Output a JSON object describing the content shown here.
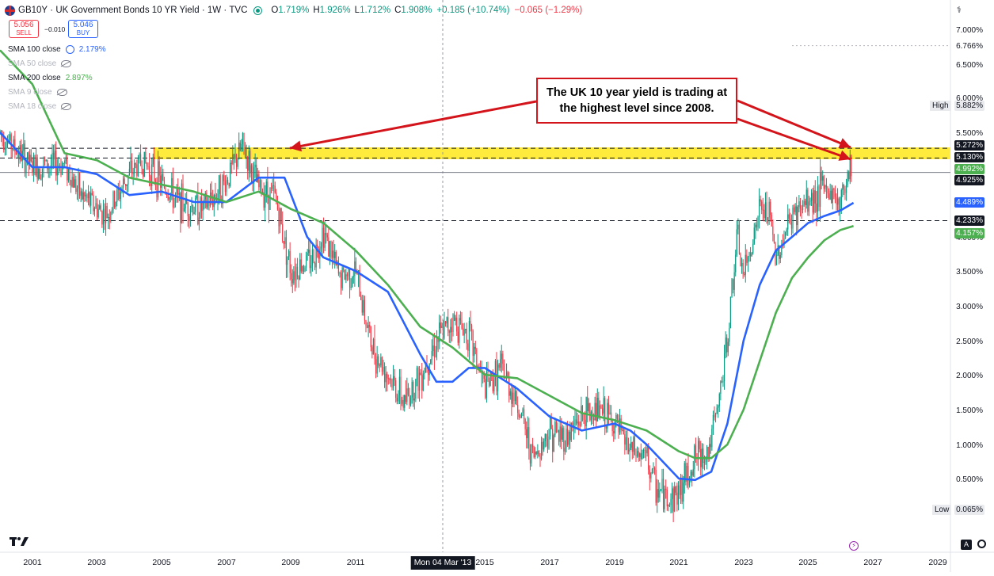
{
  "header": {
    "symbol": "GB10Y",
    "title": "UK Government Bonds 10 YR Yield",
    "interval": "1W",
    "source": "TVC",
    "open_key": "O",
    "open": "1.719%",
    "high_key": "H",
    "high": "1.926%",
    "low_key": "L",
    "low": "1.712%",
    "close_key": "C",
    "close": "1.908%",
    "change": "+0.185 (+10.74%)",
    "neg_change": "−0.065 (−1.29%)"
  },
  "trade": {
    "sell_price": "5.056",
    "sell_label": "SELL",
    "spread": "−0.010",
    "buy_price": "5.046",
    "buy_label": "BUY"
  },
  "indicators": [
    {
      "label": "SMA 100 close",
      "value": "2.179%",
      "hidden": false,
      "color": "#2962ff"
    },
    {
      "label": "SMA 50 close",
      "value": "",
      "hidden": true
    },
    {
      "label": "SMA 200 close",
      "value": "2.897%",
      "hidden": false,
      "color": "#4caf50"
    },
    {
      "label": "SMA 9 close",
      "value": "",
      "hidden": true
    },
    {
      "label": "SMA 18 close",
      "value": "",
      "hidden": true
    }
  ],
  "annotation": {
    "text": "The UK 10 year yield is trading at the highest level since 2008."
  },
  "price_labels": {
    "p6766": "6.766%",
    "high_tag": "High",
    "high_val": "5.882%",
    "p5272": "5.272%",
    "p5130": "5.130%",
    "p4992": "4.992%",
    "p4925": "4.925%",
    "p4489": "4.489%",
    "p4233": "4.233%",
    "p4157": "4.157%",
    "low_tag": "Low",
    "low_val": "0.065%"
  },
  "crosshair": {
    "x_label": "Mon 04 Mar '13"
  },
  "controls": {
    "auto": "A"
  },
  "colors": {
    "up": "#089981",
    "down": "#f23645",
    "sma100": "#2962ff",
    "sma200": "#4caf50",
    "zone": "#ffeb3b",
    "arrow": "#d4141b"
  },
  "chart_data": {
    "type": "candlestick",
    "symbol": "GB10Y",
    "interval": "1W",
    "y_scale": "linear (percent)",
    "ylim": [
      0,
      7.2
    ],
    "x_range": [
      2000.0,
      2029.4
    ],
    "y_ticks": [
      "7.000%",
      "6.500%",
      "6.000%",
      "5.500%",
      "5.000%",
      "4.500%",
      "4.000%",
      "3.500%",
      "3.000%",
      "2.500%",
      "2.000%",
      "1.500%",
      "1.000%",
      "0.500%"
    ],
    "x_ticks": [
      "2001",
      "2003",
      "2005",
      "2007",
      "2009",
      "2011",
      "2015",
      "2017",
      "2019",
      "2021",
      "2023",
      "2025",
      "2027",
      "2029"
    ],
    "highlight_zone": [
      5.13,
      5.272
    ],
    "horizontal_lines": [
      6.766,
      5.272,
      5.13,
      4.925,
      4.233
    ],
    "series": [
      {
        "name": "GB10Y",
        "x": [
          2000.0,
          2001.0,
          2002.0,
          2002.5,
          2003.3,
          2004.0,
          2004.4,
          2005.5,
          2006.3,
          2007.0,
          2007.5,
          2008.0,
          2008.5,
          2009.0,
          2009.7,
          2010.0,
          2010.5,
          2011.0,
          2011.5,
          2012.0,
          2012.5,
          2013.0,
          2013.5,
          2014.0,
          2014.5,
          2015.0,
          2015.5,
          2016.0,
          2016.5,
          2017.0,
          2017.5,
          2018.0,
          2018.5,
          2019.0,
          2019.5,
          2020.0,
          2020.3,
          2020.7,
          2021.0,
          2021.5,
          2021.9,
          2022.2,
          2022.5,
          2022.8,
          2023.0,
          2023.5,
          2023.8,
          2024.0,
          2024.5,
          2025.0,
          2025.5,
          2026.0,
          2026.3
        ],
        "y": [
          5.5,
          5.0,
          5.05,
          4.6,
          4.3,
          4.9,
          5.1,
          4.5,
          4.4,
          4.8,
          5.3,
          4.7,
          4.6,
          3.5,
          3.7,
          4.1,
          3.4,
          3.5,
          2.4,
          2.0,
          1.6,
          2.0,
          2.5,
          2.8,
          2.6,
          1.8,
          2.1,
          1.6,
          0.8,
          1.2,
          1.1,
          1.4,
          1.5,
          1.3,
          0.9,
          0.8,
          0.35,
          0.2,
          0.3,
          0.8,
          0.9,
          1.5,
          2.5,
          4.0,
          3.4,
          4.4,
          4.3,
          3.7,
          4.3,
          4.5,
          4.7,
          4.5,
          5.1
        ]
      },
      {
        "name": "SMA 100 close",
        "x": [
          2000.0,
          2001.0,
          2002.0,
          2003.0,
          2004.0,
          2005.0,
          2006.0,
          2007.0,
          2008.0,
          2008.8,
          2009.5,
          2010.0,
          2011.0,
          2012.0,
          2013.0,
          2013.5,
          2014.0,
          2014.5,
          2015.0,
          2016.0,
          2017.0,
          2018.0,
          2019.0,
          2019.5,
          2020.0,
          2021.0,
          2021.5,
          2022.0,
          2022.5,
          2023.0,
          2023.5,
          2024.0,
          2024.5,
          2025.0,
          2025.5,
          2026.0,
          2026.4
        ],
        "y": [
          5.5,
          5.0,
          5.0,
          4.9,
          4.6,
          4.65,
          4.5,
          4.5,
          4.85,
          4.85,
          4.0,
          3.7,
          3.5,
          3.2,
          2.3,
          1.9,
          1.9,
          2.1,
          2.1,
          1.8,
          1.4,
          1.2,
          1.3,
          1.2,
          1.0,
          0.5,
          0.48,
          0.6,
          1.3,
          2.5,
          3.3,
          3.8,
          4.0,
          4.2,
          4.3,
          4.38,
          4.489
        ]
      },
      {
        "name": "SMA 200 close",
        "x": [
          2000.0,
          2001.0,
          2002.0,
          2003.0,
          2004.0,
          2005.0,
          2006.0,
          2007.0,
          2008.0,
          2009.0,
          2010.0,
          2011.0,
          2012.0,
          2013.0,
          2014.0,
          2015.0,
          2016.0,
          2017.0,
          2018.0,
          2019.0,
          2020.0,
          2021.0,
          2021.5,
          2022.0,
          2022.5,
          2023.0,
          2023.5,
          2024.0,
          2024.5,
          2025.0,
          2025.5,
          2026.0,
          2026.4
        ],
        "y": [
          6.7,
          6.2,
          5.2,
          5.1,
          4.85,
          4.75,
          4.65,
          4.5,
          4.65,
          4.4,
          4.2,
          3.8,
          3.3,
          2.7,
          2.4,
          2.0,
          1.95,
          1.7,
          1.45,
          1.35,
          1.2,
          0.9,
          0.8,
          0.8,
          1.0,
          1.5,
          2.2,
          2.9,
          3.4,
          3.7,
          3.95,
          4.1,
          4.157
        ]
      }
    ],
    "legend": "top-left",
    "grid": false
  }
}
